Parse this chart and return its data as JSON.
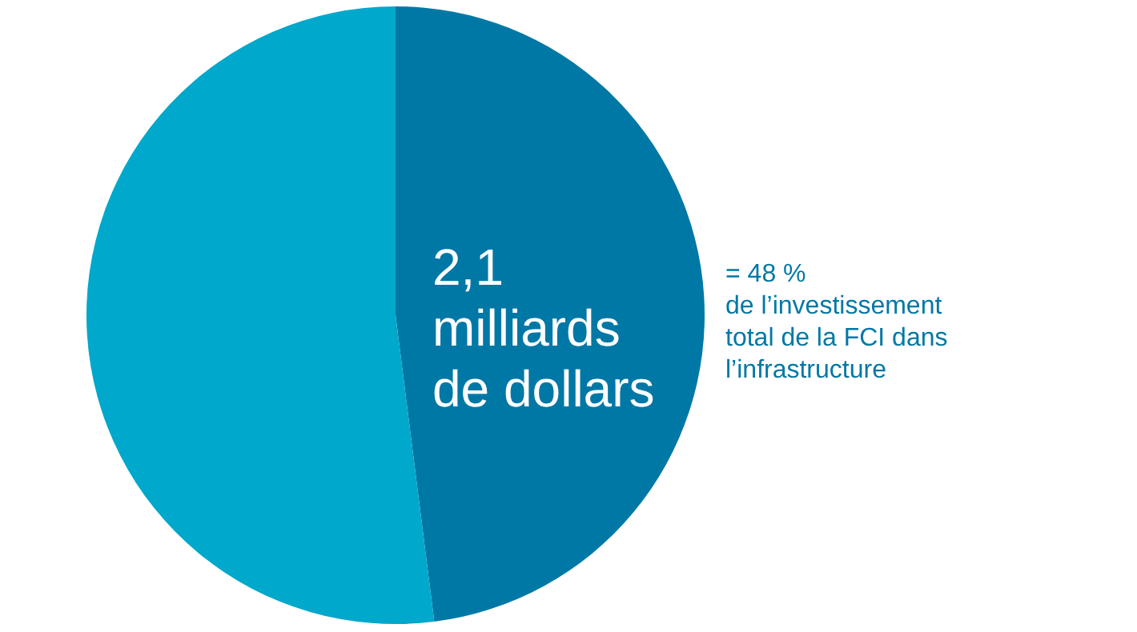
{
  "chart_data": {
    "type": "pie",
    "categories": [
      null,
      null
    ],
    "values": [
      48,
      52
    ],
    "colors": [
      "#0078a6",
      "#00a8cb"
    ],
    "annotations": [
      "2,1\nmilliards\nde dollars",
      "= 48 %\nde l’investissement\ntotal de la FCI dans\nl’infrastructure"
    ]
  }
}
